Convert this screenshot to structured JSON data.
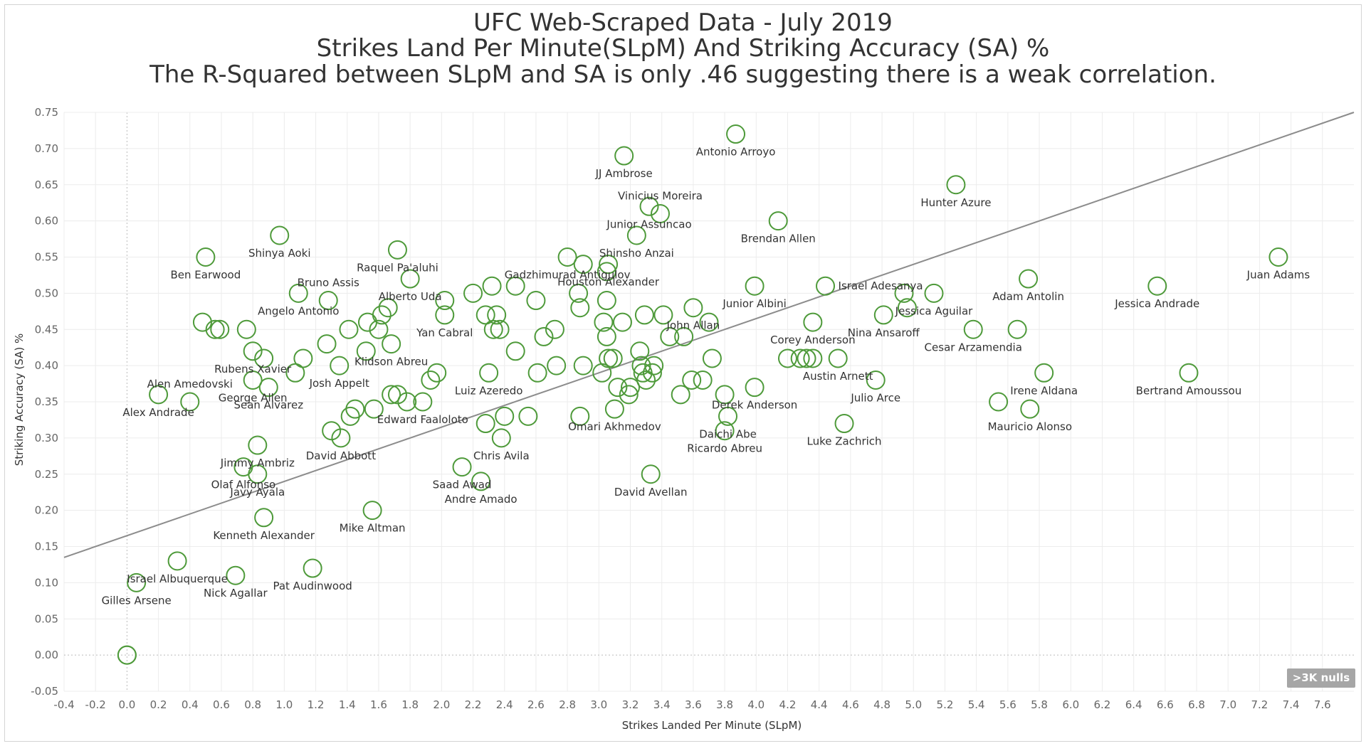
{
  "titles": {
    "line1": "UFC Web-Scraped Data - July 2019",
    "line2": "Strikes Land Per Minute(SLpM)  And Striking Accuracy (SA) %",
    "line3": "The R-Squared between SLpM and SA is only .46 suggesting there is a weak correlation."
  },
  "nulls_badge": ">3K nulls",
  "colors": {
    "marker": "#4e9a3a",
    "trend": "#8c8c8c",
    "grid": "#ececec",
    "zero": "#bbbbbb",
    "text": "#333333"
  },
  "chart_data": {
    "type": "scatter",
    "title": "UFC Web-Scraped Data - July 2019",
    "xlabel": "Strikes Landed Per Minute (SLpM)",
    "ylabel": "Striking Accuracy (SA) %",
    "xlim": [
      -0.4,
      7.8
    ],
    "ylim": [
      -0.05,
      0.75
    ],
    "x_ticks": [
      "-0.4",
      "-0.2",
      "0.0",
      "0.2",
      "0.4",
      "0.6",
      "0.8",
      "1.0",
      "1.2",
      "1.4",
      "1.6",
      "1.8",
      "2.0",
      "2.2",
      "2.4",
      "2.6",
      "2.8",
      "3.0",
      "3.2",
      "3.4",
      "3.6",
      "3.8",
      "4.0",
      "4.2",
      "4.4",
      "4.6",
      "4.8",
      "5.0",
      "5.2",
      "5.4",
      "5.6",
      "5.8",
      "6.0",
      "6.2",
      "6.4",
      "6.6",
      "6.8",
      "7.0",
      "7.2",
      "7.4",
      "7.6"
    ],
    "y_ticks": [
      "0.75",
      "0.70",
      "0.65",
      "0.60",
      "0.55",
      "0.50",
      "0.45",
      "0.40",
      "0.35",
      "0.30",
      "0.25",
      "0.20",
      "0.15",
      "0.10",
      "0.05",
      "0.00",
      "-0.05"
    ],
    "grid": true,
    "trend_line": {
      "x": [
        -0.4,
        7.8
      ],
      "y": [
        0.135,
        0.75
      ]
    },
    "points": [
      {
        "x": 3.87,
        "y": 0.72,
        "label": "Antonio Arroyo"
      },
      {
        "x": 3.16,
        "y": 0.69,
        "label": "JJ Ambrose"
      },
      {
        "x": 5.27,
        "y": 0.65,
        "label": "Hunter Azure"
      },
      {
        "x": 3.32,
        "y": 0.62,
        "label": "Junior Assuncao"
      },
      {
        "x": 3.39,
        "y": 0.61,
        "label": "Vinicius Moreira"
      },
      {
        "x": 4.14,
        "y": 0.6,
        "label": "Brendan Allen"
      },
      {
        "x": 3.24,
        "y": 0.58,
        "label": "Shinsho Anzai"
      },
      {
        "x": 0.97,
        "y": 0.58,
        "label": "Shinya Aoki"
      },
      {
        "x": 1.72,
        "y": 0.56,
        "label": "Raquel Pa'aluhi"
      },
      {
        "x": 0.5,
        "y": 0.55,
        "label": "Ben Earwood"
      },
      {
        "x": 7.32,
        "y": 0.55,
        "label": "Juan Adams"
      },
      {
        "x": 2.8,
        "y": 0.55,
        "label": "Gadzhimurad Antigulov"
      },
      {
        "x": 3.06,
        "y": 0.54,
        "label": "Houston Alexander"
      },
      {
        "x": 1.8,
        "y": 0.52,
        "label": "Alberto Uda"
      },
      {
        "x": 5.73,
        "y": 0.52,
        "label": "Adam Antolin"
      },
      {
        "x": 3.99,
        "y": 0.51,
        "label": "Junior Albini"
      },
      {
        "x": 4.44,
        "y": 0.51,
        "label": "Israel Adesanya"
      },
      {
        "x": 6.55,
        "y": 0.51,
        "label": "Jessica Andrade"
      },
      {
        "x": 5.13,
        "y": 0.5,
        "label": "Jessica Aguilar"
      },
      {
        "x": 1.09,
        "y": 0.5,
        "label": "Angelo Antonio"
      },
      {
        "x": 3.6,
        "y": 0.48,
        "label": "John Allan"
      },
      {
        "x": 4.36,
        "y": 0.46,
        "label": "Corey Anderson"
      },
      {
        "x": 1.28,
        "y": 0.49,
        "label": "Bruno Assis"
      },
      {
        "x": 4.81,
        "y": 0.47,
        "label": "Nina Ansaroff"
      },
      {
        "x": 2.02,
        "y": 0.47,
        "label": "Yan Cabral"
      },
      {
        "x": 0.8,
        "y": 0.42,
        "label": "Rubens Xavier"
      },
      {
        "x": 5.38,
        "y": 0.45,
        "label": "Cesar Arzamendia"
      },
      {
        "x": 1.68,
        "y": 0.43,
        "label": "Klidson Abreu"
      },
      {
        "x": 4.52,
        "y": 0.41,
        "label": "Austin Arnett"
      },
      {
        "x": 0.8,
        "y": 0.38,
        "label": "George Allen"
      },
      {
        "x": 5.83,
        "y": 0.39,
        "label": "Irene Aldana"
      },
      {
        "x": 6.75,
        "y": 0.39,
        "label": "Bertrand Amoussou"
      },
      {
        "x": 1.35,
        "y": 0.4,
        "label": "Josh Appelt"
      },
      {
        "x": 3.99,
        "y": 0.37,
        "label": "Derek Anderson"
      },
      {
        "x": 0.2,
        "y": 0.36,
        "label": "Alex Andrade"
      },
      {
        "x": 0.9,
        "y": 0.37,
        "label": "Sean Alvarez"
      },
      {
        "x": 2.3,
        "y": 0.39,
        "label": "Luiz Azeredo"
      },
      {
        "x": 4.76,
        "y": 0.38,
        "label": "Julio Arce"
      },
      {
        "x": 0.4,
        "y": 0.35,
        "label": "Alen Amedovski"
      },
      {
        "x": 5.74,
        "y": 0.34,
        "label": "Mauricio Alonso"
      },
      {
        "x": 1.88,
        "y": 0.35,
        "label": "Edward Faaloloto"
      },
      {
        "x": 3.82,
        "y": 0.33,
        "label": "Daichi Abe"
      },
      {
        "x": 3.1,
        "y": 0.34,
        "label": "Omari Akhmedov"
      },
      {
        "x": 4.56,
        "y": 0.32,
        "label": "Luke Zachrich"
      },
      {
        "x": 2.38,
        "y": 0.3,
        "label": "Chris Avila"
      },
      {
        "x": 0.83,
        "y": 0.29,
        "label": "Jimmy Ambriz"
      },
      {
        "x": 1.36,
        "y": 0.3,
        "label": "David Abbott"
      },
      {
        "x": 3.8,
        "y": 0.31,
        "label": "Ricardo Abreu"
      },
      {
        "x": 0.74,
        "y": 0.26,
        "label": "Olaf Alfonso"
      },
      {
        "x": 2.13,
        "y": 0.26,
        "label": "Saad Awad"
      },
      {
        "x": 0.83,
        "y": 0.25,
        "label": "Javy Ayala"
      },
      {
        "x": 2.25,
        "y": 0.24,
        "label": "Andre Amado"
      },
      {
        "x": 3.33,
        "y": 0.25,
        "label": "David Avellan"
      },
      {
        "x": 1.56,
        "y": 0.2,
        "label": "Mike Altman"
      },
      {
        "x": 0.87,
        "y": 0.19,
        "label": "Kenneth Alexander"
      },
      {
        "x": 0.32,
        "y": 0.13,
        "label": "Israel Albuquerque"
      },
      {
        "x": 0.69,
        "y": 0.11,
        "label": "Nick Agallar"
      },
      {
        "x": 1.18,
        "y": 0.12,
        "label": "Pat Audinwood"
      },
      {
        "x": 0.06,
        "y": 0.1,
        "label": "Gilles Arsene"
      },
      {
        "x": 0.0,
        "y": 0.0,
        "label": ""
      },
      {
        "x": 0.0,
        "y": 0.0,
        "label": ""
      },
      {
        "x": 0.48,
        "y": 0.46,
        "label": ""
      },
      {
        "x": 0.56,
        "y": 0.45,
        "label": ""
      },
      {
        "x": 0.59,
        "y": 0.45,
        "label": ""
      },
      {
        "x": 0.76,
        "y": 0.45,
        "label": ""
      },
      {
        "x": 0.87,
        "y": 0.41,
        "label": ""
      },
      {
        "x": 1.07,
        "y": 0.39,
        "label": ""
      },
      {
        "x": 1.12,
        "y": 0.41,
        "label": ""
      },
      {
        "x": 1.27,
        "y": 0.43,
        "label": ""
      },
      {
        "x": 1.41,
        "y": 0.45,
        "label": ""
      },
      {
        "x": 1.52,
        "y": 0.42,
        "label": ""
      },
      {
        "x": 1.53,
        "y": 0.46,
        "label": ""
      },
      {
        "x": 1.6,
        "y": 0.45,
        "label": ""
      },
      {
        "x": 1.62,
        "y": 0.47,
        "label": ""
      },
      {
        "x": 1.66,
        "y": 0.48,
        "label": ""
      },
      {
        "x": 1.68,
        "y": 0.36,
        "label": ""
      },
      {
        "x": 1.72,
        "y": 0.36,
        "label": ""
      },
      {
        "x": 1.78,
        "y": 0.35,
        "label": ""
      },
      {
        "x": 1.3,
        "y": 0.31,
        "label": ""
      },
      {
        "x": 1.42,
        "y": 0.33,
        "label": ""
      },
      {
        "x": 1.45,
        "y": 0.34,
        "label": ""
      },
      {
        "x": 1.57,
        "y": 0.34,
        "label": ""
      },
      {
        "x": 1.93,
        "y": 0.38,
        "label": ""
      },
      {
        "x": 1.97,
        "y": 0.39,
        "label": ""
      },
      {
        "x": 2.02,
        "y": 0.49,
        "label": ""
      },
      {
        "x": 2.2,
        "y": 0.5,
        "label": ""
      },
      {
        "x": 2.28,
        "y": 0.47,
        "label": ""
      },
      {
        "x": 2.32,
        "y": 0.51,
        "label": ""
      },
      {
        "x": 2.33,
        "y": 0.45,
        "label": ""
      },
      {
        "x": 2.35,
        "y": 0.47,
        "label": ""
      },
      {
        "x": 2.37,
        "y": 0.45,
        "label": ""
      },
      {
        "x": 2.47,
        "y": 0.51,
        "label": ""
      },
      {
        "x": 2.47,
        "y": 0.42,
        "label": ""
      },
      {
        "x": 2.4,
        "y": 0.33,
        "label": ""
      },
      {
        "x": 2.28,
        "y": 0.32,
        "label": ""
      },
      {
        "x": 2.55,
        "y": 0.33,
        "label": ""
      },
      {
        "x": 2.6,
        "y": 0.49,
        "label": ""
      },
      {
        "x": 2.61,
        "y": 0.39,
        "label": ""
      },
      {
        "x": 2.65,
        "y": 0.44,
        "label": ""
      },
      {
        "x": 2.72,
        "y": 0.45,
        "label": ""
      },
      {
        "x": 2.73,
        "y": 0.4,
        "label": ""
      },
      {
        "x": 2.87,
        "y": 0.5,
        "label": ""
      },
      {
        "x": 2.88,
        "y": 0.48,
        "label": ""
      },
      {
        "x": 2.9,
        "y": 0.54,
        "label": ""
      },
      {
        "x": 2.88,
        "y": 0.33,
        "label": ""
      },
      {
        "x": 2.9,
        "y": 0.4,
        "label": ""
      },
      {
        "x": 3.02,
        "y": 0.39,
        "label": ""
      },
      {
        "x": 3.03,
        "y": 0.46,
        "label": ""
      },
      {
        "x": 3.05,
        "y": 0.44,
        "label": ""
      },
      {
        "x": 3.05,
        "y": 0.53,
        "label": ""
      },
      {
        "x": 3.05,
        "y": 0.49,
        "label": ""
      },
      {
        "x": 3.06,
        "y": 0.41,
        "label": ""
      },
      {
        "x": 3.09,
        "y": 0.41,
        "label": ""
      },
      {
        "x": 3.12,
        "y": 0.37,
        "label": ""
      },
      {
        "x": 3.15,
        "y": 0.46,
        "label": ""
      },
      {
        "x": 3.19,
        "y": 0.36,
        "label": ""
      },
      {
        "x": 3.2,
        "y": 0.37,
        "label": ""
      },
      {
        "x": 3.26,
        "y": 0.42,
        "label": ""
      },
      {
        "x": 3.27,
        "y": 0.4,
        "label": ""
      },
      {
        "x": 3.28,
        "y": 0.39,
        "label": ""
      },
      {
        "x": 3.29,
        "y": 0.47,
        "label": ""
      },
      {
        "x": 3.3,
        "y": 0.38,
        "label": ""
      },
      {
        "x": 3.34,
        "y": 0.39,
        "label": ""
      },
      {
        "x": 3.35,
        "y": 0.4,
        "label": ""
      },
      {
        "x": 3.41,
        "y": 0.47,
        "label": ""
      },
      {
        "x": 3.45,
        "y": 0.44,
        "label": ""
      },
      {
        "x": 3.52,
        "y": 0.36,
        "label": ""
      },
      {
        "x": 3.54,
        "y": 0.44,
        "label": ""
      },
      {
        "x": 3.59,
        "y": 0.38,
        "label": ""
      },
      {
        "x": 3.66,
        "y": 0.38,
        "label": ""
      },
      {
        "x": 3.7,
        "y": 0.46,
        "label": ""
      },
      {
        "x": 3.72,
        "y": 0.41,
        "label": ""
      },
      {
        "x": 3.8,
        "y": 0.36,
        "label": ""
      },
      {
        "x": 4.2,
        "y": 0.41,
        "label": ""
      },
      {
        "x": 4.28,
        "y": 0.41,
        "label": ""
      },
      {
        "x": 4.32,
        "y": 0.41,
        "label": ""
      },
      {
        "x": 4.36,
        "y": 0.41,
        "label": ""
      },
      {
        "x": 4.94,
        "y": 0.5,
        "label": ""
      },
      {
        "x": 4.96,
        "y": 0.48,
        "label": ""
      },
      {
        "x": 5.54,
        "y": 0.35,
        "label": ""
      },
      {
        "x": 5.66,
        "y": 0.45,
        "label": ""
      }
    ]
  }
}
